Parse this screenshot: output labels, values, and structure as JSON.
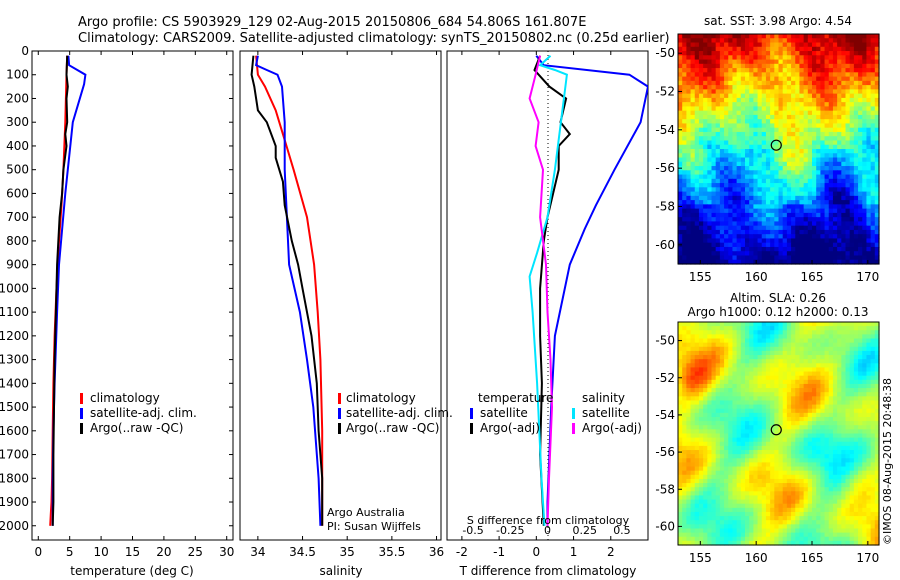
{
  "header": {
    "line1": "Argo profile: CS 5903929_129 02-Aug-2015 20150806_684 54.806S 161.807E",
    "line2": "Climatology: CARS2009. Satellite-adjusted climatology: synTS_20150802.nc (0.25d earlier)"
  },
  "colors": {
    "climatology": "#ff0000",
    "satellite": "#0000ff",
    "argo": "#000000",
    "salinity_satellite": "#00e5ff",
    "salinity_argo": "#ff00ff"
  },
  "chart_data": [
    {
      "type": "line",
      "id": "temperature",
      "xlabel": "temperature (deg C)",
      "xlim": [
        -1,
        31
      ],
      "ylim": [
        2060,
        0
      ],
      "xticks": [
        0,
        5,
        10,
        15,
        20,
        25,
        30
      ],
      "yticks": [
        0,
        100,
        200,
        300,
        400,
        500,
        600,
        700,
        800,
        900,
        1000,
        1100,
        1200,
        1300,
        1400,
        1500,
        1600,
        1700,
        1800,
        1900,
        2000
      ],
      "legend": [
        "climatology",
        "satellite-adj. clim.",
        "Argo(..raw -QC)"
      ],
      "series": [
        {
          "key": "climatology",
          "x": [
            4.6,
            4.5,
            4.3,
            4.0,
            3.7,
            3.3,
            2.9,
            2.6,
            2.4,
            2.3,
            2.2,
            2.1,
            2.0,
            1.9
          ],
          "depth": [
            20,
            100,
            300,
            500,
            650,
            800,
            1000,
            1200,
            1400,
            1600,
            1800,
            1900,
            1950,
            2000
          ]
        },
        {
          "key": "satellite",
          "x": [
            4.8,
            4.9,
            7.5,
            7.3,
            5.5,
            4.3,
            3.3,
            3.0,
            2.6,
            2.4,
            2.3,
            2.3,
            2.3
          ],
          "depth": [
            20,
            60,
            100,
            140,
            300,
            600,
            900,
            1100,
            1400,
            1600,
            1800,
            1950,
            2000
          ]
        },
        {
          "key": "argo",
          "x": [
            4.6,
            4.5,
            4.7,
            4.5,
            4.6,
            4.3,
            4.5,
            4.0,
            3.8,
            3.4,
            3.0,
            2.8,
            2.6,
            2.5,
            2.4,
            2.4,
            2.3
          ],
          "depth": [
            20,
            100,
            150,
            200,
            300,
            350,
            400,
            500,
            600,
            700,
            900,
            1100,
            1300,
            1500,
            1700,
            1900,
            2000
          ]
        }
      ]
    },
    {
      "type": "line",
      "id": "salinity",
      "xlabel": "salinity",
      "xlim": [
        33.8,
        36.05
      ],
      "ylim": [
        2060,
        0
      ],
      "xticks": [
        34,
        34.5,
        35,
        35.5,
        36
      ],
      "legend": [
        "climatology",
        "satellite-adj. clim.",
        "Argo(..raw -QC)"
      ],
      "annotations": [
        "Argo Australia",
        "PI: Susan Wijffels"
      ],
      "series": [
        {
          "key": "climatology",
          "x": [
            33.98,
            34.0,
            34.08,
            34.2,
            34.28,
            34.32,
            34.4,
            34.55,
            34.63,
            34.67,
            34.7,
            34.72,
            34.72
          ],
          "depth": [
            20,
            100,
            150,
            250,
            350,
            400,
            500,
            700,
            900,
            1100,
            1300,
            1600,
            2000
          ]
        },
        {
          "key": "satellite",
          "x": [
            34.0,
            33.98,
            34.1,
            34.22,
            34.27,
            34.28,
            34.3,
            34.3,
            34.35,
            34.47,
            34.55,
            34.62,
            34.68,
            34.7
          ],
          "depth": [
            20,
            60,
            80,
            100,
            150,
            200,
            300,
            500,
            900,
            1100,
            1300,
            1500,
            1800,
            2000
          ]
        },
        {
          "key": "argo",
          "x": [
            33.95,
            33.93,
            33.96,
            34.0,
            34.1,
            34.2,
            34.2,
            34.28,
            34.3,
            34.38,
            34.45,
            34.5,
            34.6,
            34.66,
            34.68,
            34.72,
            34.72
          ],
          "depth": [
            20,
            100,
            150,
            250,
            300,
            400,
            450,
            550,
            650,
            800,
            900,
            1000,
            1200,
            1400,
            1600,
            1800,
            2000
          ]
        }
      ]
    },
    {
      "type": "line",
      "id": "difference",
      "xlabel": "T difference from climatology",
      "xlabel_top": "S difference from climatology",
      "xlim": [
        -2.4,
        3
      ],
      "ylim": [
        2060,
        0
      ],
      "xticks": [
        -2,
        -1,
        0,
        1,
        2
      ],
      "xticks_top": [
        -0.5,
        -0.25,
        0,
        0.25,
        0.5
      ],
      "legend_headers": [
        "temperature",
        "salinity"
      ],
      "legend": [
        "satellite",
        "Argo(-adj)",
        "satellite",
        "Argo(-adj)"
      ],
      "series": [
        {
          "key": "t_satellite",
          "x": [
            0,
            0.2,
            2.5,
            3.0,
            2.8,
            2.1,
            1.6,
            1.3,
            0.9,
            0.5,
            0.4,
            0.35,
            0.3,
            0.3
          ],
          "depth": [
            20,
            60,
            100,
            150,
            300,
            500,
            650,
            750,
            900,
            1200,
            1500,
            1700,
            1900,
            2000
          ]
        },
        {
          "key": "t_argo",
          "x": [
            0.1,
            -0.05,
            0.35,
            0.8,
            0.65,
            0.9,
            0.6,
            0.6,
            0.3,
            0.2,
            0.1,
            0.1,
            0.15,
            0.1,
            0.2
          ],
          "depth": [
            20,
            80,
            150,
            200,
            300,
            350,
            400,
            500,
            700,
            800,
            1000,
            1200,
            1400,
            1700,
            2000
          ]
        },
        {
          "key": "s_satellite",
          "x": [
            0.02,
            -0.05,
            0.05,
            0.13,
            0.11,
            0.09,
            0.05,
            0.0,
            -0.07,
            -0.12,
            -0.1,
            -0.07,
            -0.04,
            -0.02
          ],
          "depth": [
            20,
            60,
            80,
            100,
            200,
            300,
            500,
            700,
            850,
            950,
            1100,
            1400,
            1800,
            2000
          ]
        },
        {
          "key": "s_argo",
          "x": [
            -0.05,
            -0.08,
            -0.12,
            -0.06,
            -0.08,
            -0.03,
            -0.05,
            -0.01,
            0.0,
            0.02,
            0.03,
            0.01,
            0.0
          ],
          "depth": [
            20,
            100,
            200,
            300,
            400,
            500,
            700,
            900,
            1100,
            1300,
            1500,
            1800,
            2000
          ]
        }
      ]
    },
    {
      "type": "heatmap",
      "id": "sst_map",
      "title": "sat. SST: 3.98 Argo: 4.54",
      "xlim": [
        153,
        171
      ],
      "ylim": [
        -61,
        -49
      ],
      "xticks": [
        155,
        160,
        165,
        170
      ],
      "yticks": [
        -50,
        -52,
        -54,
        -56,
        -58,
        -60
      ],
      "marker": {
        "lon": 161.8,
        "lat": -54.8
      }
    },
    {
      "type": "heatmap",
      "id": "sla_map",
      "title": "Altim. SLA: 0.26",
      "subtitle": "Argo h1000: 0.12 h2000: 0.13",
      "xlim": [
        153,
        171
      ],
      "ylim": [
        -61,
        -49
      ],
      "xticks": [
        155,
        160,
        165,
        170
      ],
      "yticks": [
        -50,
        -52,
        -54,
        -56,
        -58,
        -60
      ],
      "marker": {
        "lon": 161.8,
        "lat": -54.8
      }
    }
  ],
  "credit": "©IMOS 08-Aug-2015 20:48:38"
}
